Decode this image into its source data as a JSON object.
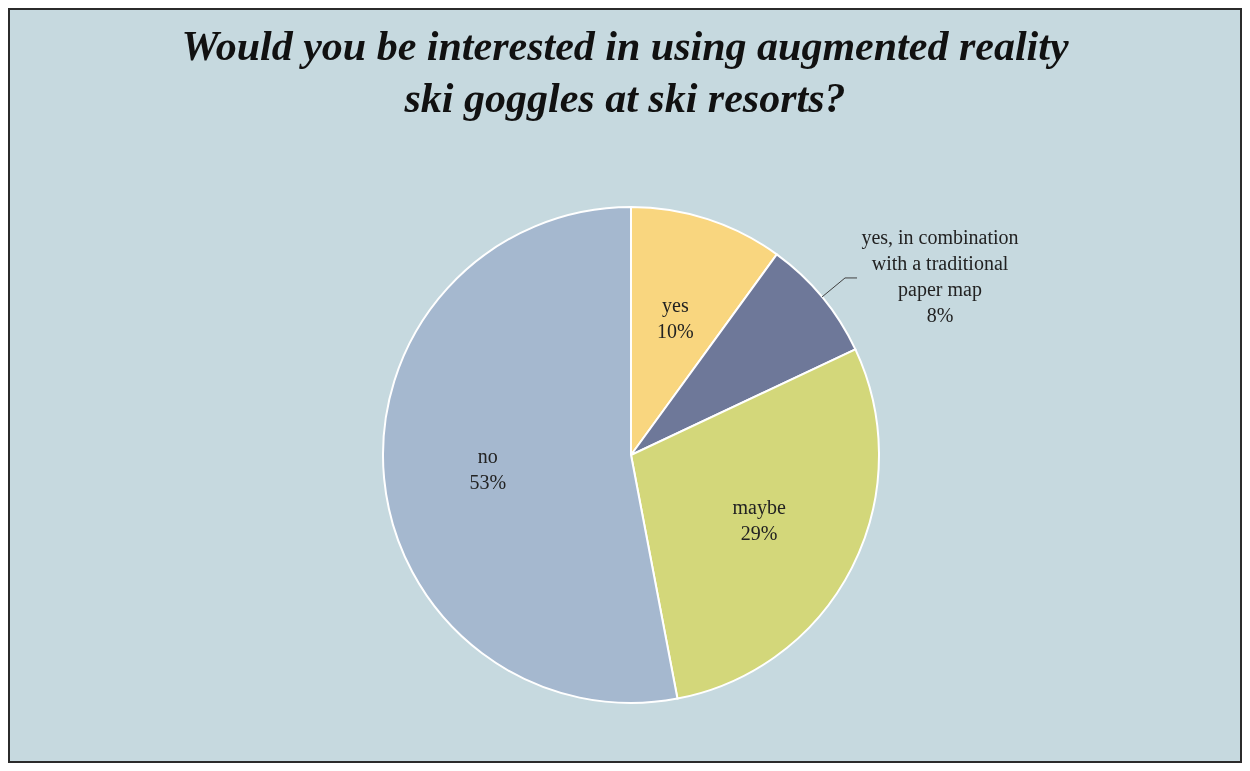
{
  "chart_data": {
    "type": "pie",
    "title": "Would you be interested in using augmented reality ski goggles at ski resorts?",
    "categories": [
      "yes",
      "yes, in combination with a traditional paper map",
      "maybe",
      "no"
    ],
    "values": [
      10,
      8,
      29,
      53
    ],
    "value_labels": [
      "10%",
      "8%",
      "29%",
      "53%"
    ],
    "colors": [
      "#f9d67f",
      "#6e7899",
      "#d3d77a",
      "#a5b8cf"
    ]
  }
}
